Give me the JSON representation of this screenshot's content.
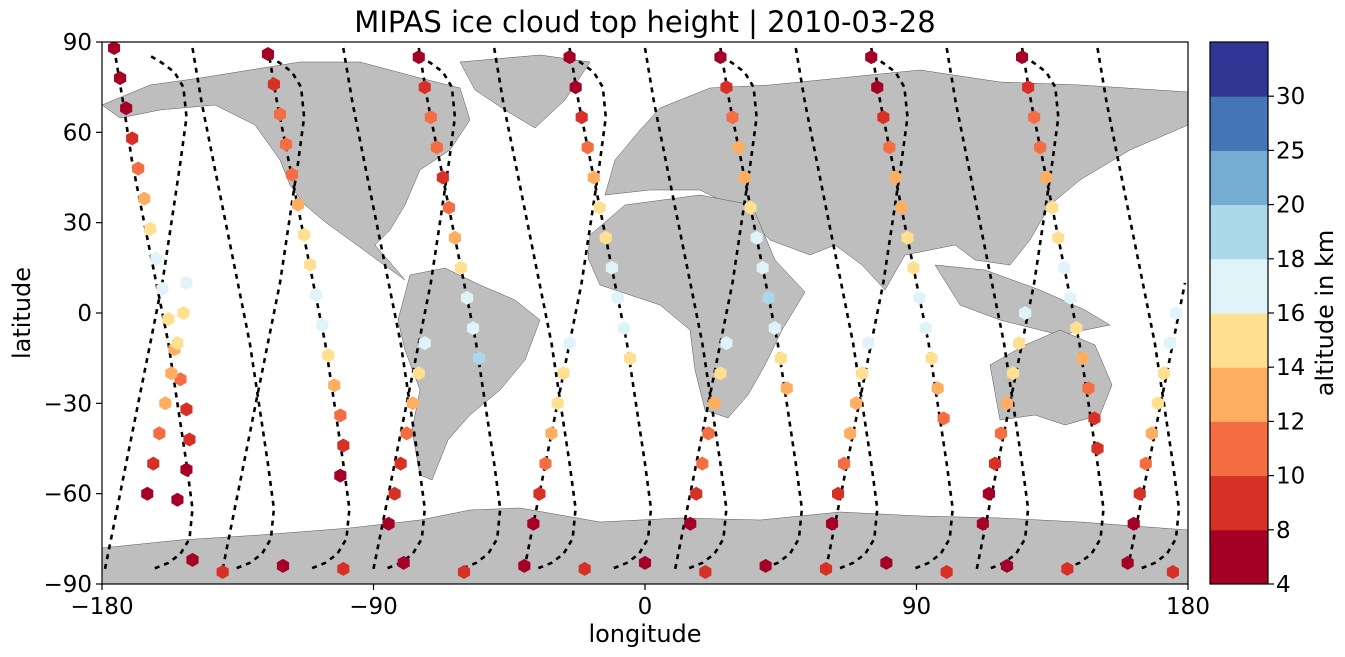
{
  "chart_data": {
    "type": "scatter",
    "title": "MIPAS ice cloud top height | 2010-03-28",
    "xlabel": "longitude",
    "ylabel": "latitude",
    "xlim": [
      -180,
      180
    ],
    "ylim": [
      -90,
      90
    ],
    "xticks": [
      "−180",
      "−90",
      "0",
      "90",
      "180"
    ],
    "yticks": [
      "90",
      "60",
      "30",
      "0",
      "−30",
      "−60",
      "−90"
    ],
    "grid": false,
    "projection": "plate-carree world map with grey land",
    "land_color": "#bebebe",
    "colorbar": {
      "label": "altitude in km",
      "bounds": [
        4,
        8,
        10,
        12,
        14,
        16,
        18,
        20,
        25,
        30
      ],
      "tick_labels": [
        "4",
        "8",
        "10",
        "12",
        "14",
        "16",
        "18",
        "20",
        "25",
        "30"
      ],
      "colors": [
        "#a50026",
        "#d73027",
        "#f46d43",
        "#fdae61",
        "#fee090",
        "#e0f3f8",
        "#abd9e9",
        "#74add1",
        "#4575b4",
        "#313695"
      ]
    },
    "orbit_tracks": [
      {
        "lon": [
          -176,
          -173,
          -170,
          -166,
          -162,
          -158,
          -155,
          -152,
          -150,
          -151,
          -154,
          -158,
          -163
        ],
        "lat": [
          88,
          70,
          50,
          30,
          10,
          -10,
          -30,
          -50,
          -65,
          -75,
          -80,
          -83,
          -85
        ]
      },
      {
        "lon": [
          -150,
          -147,
          -143,
          -139,
          -135,
          -131,
          -128,
          -125,
          -123,
          -124,
          -127,
          -131,
          -136
        ],
        "lat": [
          88,
          70,
          50,
          30,
          10,
          -10,
          -30,
          -50,
          -65,
          -75,
          -80,
          -83,
          -85
        ]
      },
      {
        "lon": [
          -125,
          -122,
          -118,
          -114,
          -110,
          -106,
          -103,
          -100,
          -98,
          -99,
          -102,
          -106,
          -111
        ],
        "lat": [
          88,
          70,
          50,
          30,
          10,
          -10,
          -30,
          -50,
          -65,
          -75,
          -80,
          -83,
          -85
        ]
      },
      {
        "lon": [
          -100,
          -97,
          -93,
          -89,
          -85,
          -81,
          -78,
          -75,
          -73,
          -74,
          -77,
          -81,
          -86
        ],
        "lat": [
          88,
          70,
          50,
          30,
          10,
          -10,
          -30,
          -50,
          -65,
          -75,
          -80,
          -83,
          -85
        ]
      },
      {
        "lon": [
          -75,
          -72,
          -68,
          -64,
          -60,
          -56,
          -53,
          -50,
          -48,
          -49,
          -52,
          -56,
          -61
        ],
        "lat": [
          88,
          70,
          50,
          30,
          10,
          -10,
          -30,
          -50,
          -65,
          -75,
          -80,
          -83,
          -85
        ]
      },
      {
        "lon": [
          -50,
          -47,
          -43,
          -39,
          -35,
          -31,
          -28,
          -25,
          -23,
          -24,
          -27,
          -31,
          -36
        ],
        "lat": [
          88,
          70,
          50,
          30,
          10,
          -10,
          -30,
          -50,
          -65,
          -75,
          -80,
          -83,
          -85
        ]
      },
      {
        "lon": [
          -25,
          -22,
          -18,
          -14,
          -10,
          -6,
          -3,
          0,
          2,
          1,
          -2,
          -6,
          -11
        ],
        "lat": [
          88,
          70,
          50,
          30,
          10,
          -10,
          -30,
          -50,
          -65,
          -75,
          -80,
          -83,
          -85
        ]
      },
      {
        "lon": [
          0,
          3,
          7,
          11,
          15,
          19,
          22,
          25,
          27,
          26,
          23,
          19,
          14
        ],
        "lat": [
          88,
          70,
          50,
          30,
          10,
          -10,
          -30,
          -50,
          -65,
          -75,
          -80,
          -83,
          -85
        ]
      },
      {
        "lon": [
          25,
          28,
          32,
          36,
          40,
          44,
          47,
          50,
          52,
          51,
          48,
          44,
          39
        ],
        "lat": [
          88,
          70,
          50,
          30,
          10,
          -10,
          -30,
          -50,
          -65,
          -75,
          -80,
          -83,
          -85
        ]
      },
      {
        "lon": [
          50,
          53,
          57,
          61,
          65,
          69,
          72,
          75,
          77,
          76,
          73,
          69,
          64
        ],
        "lat": [
          88,
          70,
          50,
          30,
          10,
          -10,
          -30,
          -50,
          -65,
          -75,
          -80,
          -83,
          -85
        ]
      },
      {
        "lon": [
          75,
          78,
          82,
          86,
          90,
          94,
          97,
          100,
          102,
          101,
          98,
          94,
          89
        ],
        "lat": [
          88,
          70,
          50,
          30,
          10,
          -10,
          -30,
          -50,
          -65,
          -75,
          -80,
          -83,
          -85
        ]
      },
      {
        "lon": [
          100,
          103,
          107,
          111,
          115,
          119,
          122,
          125,
          127,
          126,
          123,
          119,
          114
        ],
        "lat": [
          88,
          70,
          50,
          30,
          10,
          -10,
          -30,
          -50,
          -65,
          -75,
          -80,
          -83,
          -85
        ]
      },
      {
        "lon": [
          125,
          128,
          132,
          136,
          140,
          144,
          147,
          150,
          152,
          151,
          148,
          144,
          139
        ],
        "lat": [
          88,
          70,
          50,
          30,
          10,
          -10,
          -30,
          -50,
          -65,
          -75,
          -80,
          -83,
          -85
        ]
      },
      {
        "lon": [
          150,
          153,
          157,
          161,
          165,
          169,
          172,
          175,
          177,
          176,
          173,
          169,
          164
        ],
        "lat": [
          88,
          70,
          50,
          30,
          10,
          -10,
          -30,
          -50,
          -65,
          -75,
          -80,
          -83,
          -85
        ]
      },
      {
        "lon": [
          -179,
          -176,
          -172,
          -168,
          -164,
          -160,
          -157,
          -154,
          -152,
          -153,
          -156,
          -160,
          -165
        ],
        "lat": [
          -85,
          -70,
          -50,
          -30,
          -10,
          10,
          30,
          50,
          65,
          75,
          80,
          83,
          86
        ]
      },
      {
        "lon": [
          -140,
          -137,
          -133,
          -129,
          -125,
          -121,
          -118,
          -115,
          -113,
          -114,
          -117,
          -121,
          -126
        ],
        "lat": [
          -85,
          -70,
          -50,
          -30,
          -10,
          10,
          30,
          50,
          65,
          75,
          80,
          83,
          86
        ]
      },
      {
        "lon": [
          -90,
          -87,
          -83,
          -79,
          -75,
          -71,
          -68,
          -65,
          -63,
          -64,
          -67,
          -71,
          -76
        ],
        "lat": [
          -85,
          -70,
          -50,
          -30,
          -10,
          10,
          30,
          50,
          65,
          75,
          80,
          83,
          86
        ]
      },
      {
        "lon": [
          -40,
          -37,
          -33,
          -29,
          -25,
          -21,
          -18,
          -15,
          -13,
          -14,
          -17,
          -21,
          -26
        ],
        "lat": [
          -85,
          -70,
          -50,
          -30,
          -10,
          10,
          30,
          50,
          65,
          75,
          80,
          83,
          86
        ]
      },
      {
        "lon": [
          10,
          13,
          17,
          21,
          25,
          29,
          32,
          35,
          37,
          36,
          33,
          29,
          24
        ],
        "lat": [
          -85,
          -70,
          -50,
          -30,
          -10,
          10,
          30,
          50,
          65,
          75,
          80,
          83,
          86
        ]
      },
      {
        "lon": [
          60,
          63,
          67,
          71,
          75,
          79,
          82,
          85,
          87,
          86,
          83,
          79,
          74
        ],
        "lat": [
          -85,
          -70,
          -50,
          -30,
          -10,
          10,
          30,
          50,
          65,
          75,
          80,
          83,
          86
        ]
      },
      {
        "lon": [
          110,
          113,
          117,
          121,
          125,
          129,
          132,
          135,
          137,
          136,
          133,
          129,
          124
        ],
        "lat": [
          -85,
          -70,
          -50,
          -30,
          -10,
          10,
          30,
          50,
          65,
          75,
          80,
          83,
          86
        ]
      },
      {
        "lon": [
          160,
          163,
          167,
          171,
          175,
          179
        ],
        "lat": [
          -85,
          -70,
          -50,
          -30,
          -10,
          10
        ]
      }
    ],
    "cloud_tracks": [
      {
        "lon": [
          -176,
          -174,
          -172,
          -170,
          -168,
          -166,
          -164,
          -162,
          -160,
          -158,
          -156,
          -154,
          -152,
          -151,
          -152,
          -155
        ],
        "lat": [
          88,
          78,
          68,
          58,
          48,
          38,
          28,
          18,
          8,
          -2,
          -12,
          -22,
          -32,
          -42,
          -52,
          -62
        ],
        "alt": [
          7,
          7,
          7,
          9,
          11,
          13,
          15,
          17,
          17,
          15,
          13,
          11,
          9,
          9,
          7,
          7
        ]
      },
      {
        "lon": [
          -125,
          -123,
          -121,
          -119,
          -117,
          -115,
          -113,
          -111,
          -109,
          -107,
          -105,
          -103,
          -101,
          -100,
          -101
        ],
        "lat": [
          86,
          76,
          66,
          56,
          46,
          36,
          26,
          16,
          6,
          -4,
          -14,
          -24,
          -34,
          -44,
          -54
        ],
        "alt": [
          7,
          9,
          11,
          11,
          11,
          13,
          15,
          15,
          17,
          17,
          15,
          13,
          11,
          9,
          7
        ]
      },
      {
        "lon": [
          -75,
          -73,
          -71,
          -69,
          -67,
          -65,
          -63,
          -61,
          -59,
          -57,
          -55
        ],
        "lat": [
          85,
          75,
          65,
          55,
          45,
          35,
          25,
          15,
          5,
          -5,
          -15
        ],
        "alt": [
          7,
          9,
          11,
          11,
          9,
          11,
          13,
          15,
          17,
          17,
          19
        ]
      },
      {
        "lon": [
          -25,
          -23,
          -21,
          -19,
          -17,
          -15,
          -13,
          -11,
          -9,
          -7,
          -5
        ],
        "lat": [
          85,
          75,
          65,
          55,
          45,
          35,
          25,
          15,
          5,
          -5,
          -15
        ],
        "alt": [
          7,
          7,
          9,
          11,
          13,
          15,
          15,
          17,
          17,
          17,
          15
        ]
      },
      {
        "lon": [
          25,
          27,
          29,
          31,
          33,
          35,
          37,
          39,
          41,
          43,
          45,
          47
        ],
        "lat": [
          85,
          75,
          65,
          55,
          45,
          35,
          25,
          15,
          5,
          -5,
          -15,
          -25
        ],
        "alt": [
          7,
          9,
          11,
          13,
          13,
          15,
          17,
          17,
          19,
          17,
          15,
          13
        ]
      },
      {
        "lon": [
          75,
          77,
          79,
          81,
          83,
          85,
          87,
          89,
          91,
          93,
          95,
          97,
          99
        ],
        "lat": [
          85,
          75,
          65,
          55,
          45,
          35,
          25,
          15,
          5,
          -5,
          -15,
          -25,
          -35
        ],
        "alt": [
          7,
          7,
          9,
          11,
          13,
          13,
          15,
          15,
          17,
          17,
          15,
          13,
          11
        ]
      },
      {
        "lon": [
          125,
          127,
          129,
          131,
          133,
          135,
          137,
          139,
          141,
          143,
          145,
          147,
          149,
          150
        ],
        "lat": [
          85,
          75,
          65,
          55,
          45,
          35,
          25,
          15,
          5,
          -5,
          -15,
          -25,
          -35,
          -45
        ],
        "alt": [
          7,
          9,
          11,
          11,
          13,
          15,
          15,
          17,
          17,
          15,
          13,
          11,
          9,
          9
        ]
      },
      {
        "lon": [
          -165,
          -163,
          -161,
          -159,
          -157,
          -155,
          -153,
          -152
        ],
        "lat": [
          -60,
          -50,
          -40,
          -30,
          -20,
          -10,
          0,
          10
        ],
        "alt": [
          7,
          9,
          11,
          13,
          13,
          15,
          15,
          17
        ]
      },
      {
        "lon": [
          -85,
          -83,
          -81,
          -79,
          -77,
          -75,
          -73
        ],
        "lat": [
          -70,
          -60,
          -50,
          -40,
          -30,
          -20,
          -10
        ],
        "alt": [
          7,
          9,
          9,
          11,
          13,
          15,
          17
        ]
      },
      {
        "lon": [
          -37,
          -35,
          -33,
          -31,
          -29,
          -27,
          -25
        ],
        "lat": [
          -70,
          -60,
          -50,
          -40,
          -30,
          -20,
          -10
        ],
        "alt": [
          7,
          9,
          11,
          13,
          15,
          15,
          17
        ]
      },
      {
        "lon": [
          15,
          17,
          19,
          21,
          23,
          25,
          27
        ],
        "lat": [
          -70,
          -60,
          -50,
          -40,
          -30,
          -20,
          -10
        ],
        "alt": [
          7,
          9,
          11,
          11,
          13,
          15,
          17
        ]
      },
      {
        "lon": [
          62,
          64,
          66,
          68,
          70,
          72,
          74
        ],
        "lat": [
          -70,
          -60,
          -50,
          -40,
          -30,
          -20,
          -10
        ],
        "alt": [
          7,
          9,
          11,
          13,
          13,
          15,
          17
        ]
      },
      {
        "lon": [
          112,
          114,
          116,
          118,
          120,
          122,
          124,
          126
        ],
        "lat": [
          -70,
          -60,
          -50,
          -40,
          -30,
          -20,
          -10,
          0
        ],
        "alt": [
          7,
          7,
          9,
          11,
          13,
          15,
          15,
          17
        ]
      },
      {
        "lon": [
          162,
          164,
          166,
          168,
          170,
          172,
          174,
          176
        ],
        "lat": [
          -70,
          -60,
          -50,
          -40,
          -30,
          -20,
          -10,
          0
        ],
        "alt": [
          7,
          9,
          11,
          13,
          15,
          15,
          17,
          17
        ]
      },
      {
        "lon": [
          -150,
          -140,
          -120,
          -100,
          -80,
          -60,
          -40,
          -20,
          0,
          20,
          40,
          60,
          80,
          100,
          120,
          140,
          160,
          175
        ],
        "lat": [
          -82,
          -86,
          -84,
          -85,
          -83,
          -86,
          -84,
          -85,
          -83,
          -86,
          -84,
          -85,
          -83,
          -86,
          -84,
          -85,
          -83,
          -86
        ],
        "alt": [
          7,
          9,
          7,
          9,
          7,
          9,
          7,
          9,
          7,
          9,
          7,
          9,
          7,
          9,
          7,
          9,
          7,
          9
        ]
      }
    ]
  }
}
